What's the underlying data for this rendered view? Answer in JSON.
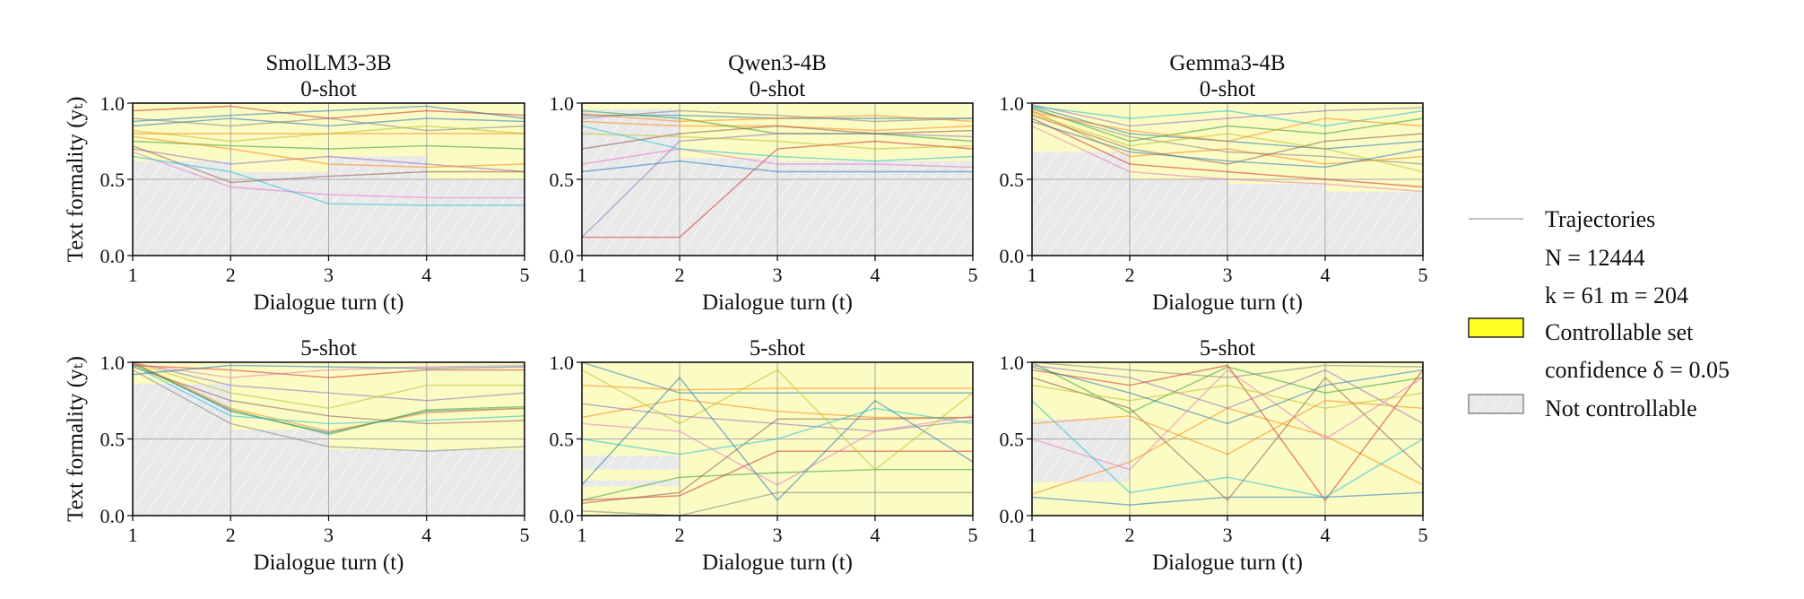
{
  "figure": {
    "legend": {
      "items": [
        {
          "kind": "line",
          "label": "Trajectories",
          "color": "#999999"
        },
        {
          "kind": "text",
          "label": "N = 12444"
        },
        {
          "kind": "text",
          "label": "k = 61 m = 204"
        },
        {
          "kind": "patch",
          "label": "Controllable set",
          "color": "#ffff22"
        },
        {
          "kind": "text",
          "label": "confidence δ = 0.05"
        },
        {
          "kind": "hatch",
          "label": "Not controllable",
          "color": "#e8e8e8"
        }
      ],
      "placement": "right"
    },
    "colors": {
      "controllable_fill": "#fbfbc4",
      "not_controllable_fill": "#e9e9e9",
      "series_palette": [
        "#1f77b4",
        "#ff7f0e",
        "#2ca02c",
        "#d62728",
        "#9467bd",
        "#8c564b",
        "#e377c2",
        "#7f7f7f",
        "#bcbd22",
        "#17becf"
      ]
    }
  },
  "chart_data": [
    {
      "type": "line",
      "title": "SmolLM3-3B",
      "subtitle": "0-shot",
      "xlabel": "Dialogue turn (t)",
      "ylabel": "Text formality (yₜ)",
      "xlim": [
        1,
        5
      ],
      "ylim": [
        0,
        1
      ],
      "xticks": [
        "1",
        "2",
        "3",
        "4",
        "5"
      ],
      "yticks": [
        "0.0",
        "0.5",
        "1.0"
      ],
      "grid": true,
      "controllable_set": [
        [
          [
            0.62,
            1.0
          ]
        ],
        [
          [
            0.55,
            1.0
          ]
        ],
        [
          [
            0.65,
            1.0
          ]
        ],
        [
          [
            0.5,
            1.0
          ]
        ]
      ],
      "trajectories": [
        [
          0.85,
          0.9,
          0.85,
          0.9,
          0.88
        ],
        [
          0.8,
          0.8,
          0.8,
          0.8,
          0.8
        ],
        [
          0.75,
          0.72,
          0.7,
          0.72,
          0.7
        ],
        [
          0.95,
          0.98,
          0.9,
          0.95,
          0.92
        ],
        [
          0.7,
          0.6,
          0.65,
          0.6,
          0.55
        ],
        [
          0.72,
          0.48,
          0.52,
          0.55,
          0.55
        ],
        [
          0.68,
          0.45,
          0.4,
          0.38,
          0.38
        ],
        [
          0.9,
          0.85,
          0.9,
          0.82,
          0.85
        ],
        [
          0.82,
          0.75,
          0.8,
          0.85,
          0.8
        ],
        [
          0.65,
          0.55,
          0.34,
          0.33,
          0.33
        ],
        [
          0.88,
          0.92,
          0.95,
          0.98,
          0.9
        ],
        [
          0.78,
          0.7,
          0.6,
          0.58,
          0.6
        ]
      ]
    },
    {
      "type": "line",
      "title": "Qwen3-4B",
      "subtitle": "0-shot",
      "xlabel": "Dialogue turn (t)",
      "ylabel": "",
      "xlim": [
        1,
        5
      ],
      "ylim": [
        0,
        1
      ],
      "xticks": [
        "1",
        "2",
        "3",
        "4",
        "5"
      ],
      "yticks": [
        "0.0",
        "0.5",
        "1.0"
      ],
      "grid": true,
      "controllable_set": [
        [
          [
            0.96,
            1.0
          ]
        ],
        [
          [
            0.64,
            1.0
          ]
        ],
        [
          [
            0.62,
            1.0
          ]
        ],
        [
          [
            0.62,
            1.0
          ]
        ]
      ],
      "trajectories": [
        [
          0.92,
          0.92,
          0.9,
          0.9,
          0.9
        ],
        [
          0.88,
          0.85,
          0.85,
          0.82,
          0.85
        ],
        [
          0.95,
          0.9,
          0.8,
          0.8,
          0.75
        ],
        [
          0.12,
          0.12,
          0.7,
          0.75,
          0.7
        ],
        [
          0.12,
          0.75,
          0.8,
          0.8,
          0.78
        ],
        [
          0.7,
          0.8,
          0.85,
          0.8,
          0.82
        ],
        [
          0.6,
          0.7,
          0.6,
          0.6,
          0.58
        ],
        [
          0.9,
          0.95,
          0.92,
          0.88,
          0.9
        ],
        [
          0.8,
          0.78,
          0.75,
          0.7,
          0.72
        ],
        [
          0.85,
          0.7,
          0.65,
          0.62,
          0.65
        ],
        [
          0.55,
          0.62,
          0.55,
          0.55,
          0.55
        ],
        [
          0.93,
          0.88,
          0.9,
          0.92,
          0.88
        ]
      ]
    },
    {
      "type": "line",
      "title": "Gemma3-4B",
      "subtitle": "0-shot",
      "xlabel": "Dialogue turn (t)",
      "ylabel": "",
      "xlim": [
        1,
        5
      ],
      "ylim": [
        0,
        1
      ],
      "xticks": [
        "1",
        "2",
        "3",
        "4",
        "5"
      ],
      "yticks": [
        "0.0",
        "0.5",
        "1.0"
      ],
      "grid": true,
      "controllable_set": [
        [
          [
            0.68,
            1.0
          ]
        ],
        [
          [
            0.5,
            1.0
          ]
        ],
        [
          [
            0.47,
            1.0
          ]
        ],
        [
          [
            0.42,
            1.0
          ]
        ]
      ],
      "trajectories": [
        [
          0.98,
          0.8,
          0.75,
          0.7,
          0.75
        ],
        [
          0.95,
          0.65,
          0.7,
          0.6,
          0.65
        ],
        [
          0.97,
          0.75,
          0.85,
          0.8,
          0.9
        ],
        [
          0.9,
          0.6,
          0.55,
          0.5,
          0.45
        ],
        [
          0.99,
          0.85,
          0.9,
          0.95,
          0.97
        ],
        [
          0.92,
          0.7,
          0.6,
          0.75,
          0.8
        ],
        [
          0.85,
          0.55,
          0.5,
          0.47,
          0.42
        ],
        [
          0.96,
          0.78,
          0.68,
          0.65,
          0.6
        ],
        [
          0.93,
          0.72,
          0.8,
          0.7,
          0.55
        ],
        [
          0.98,
          0.9,
          0.95,
          0.85,
          0.95
        ],
        [
          0.88,
          0.68,
          0.62,
          0.58,
          0.7
        ],
        [
          0.94,
          0.82,
          0.75,
          0.9,
          0.85
        ]
      ]
    },
    {
      "type": "line",
      "title": "",
      "subtitle": "5-shot",
      "xlabel": "Dialogue turn (t)",
      "ylabel": "Text formality (yₜ)",
      "xlim": [
        1,
        5
      ],
      "ylim": [
        0,
        1
      ],
      "xticks": [
        "1",
        "2",
        "3",
        "4",
        "5"
      ],
      "yticks": [
        "0.0",
        "0.5",
        "1.0"
      ],
      "grid": true,
      "controllable_set": [
        [
          [
            0.86,
            1.0
          ]
        ],
        [
          [
            0.56,
            1.0
          ]
        ],
        [
          [
            0.43,
            1.0
          ]
        ],
        [
          [
            0.43,
            1.0
          ]
        ]
      ],
      "trajectories": [
        [
          1.0,
          0.68,
          0.54,
          0.68,
          0.7
        ],
        [
          1.0,
          0.7,
          0.55,
          0.67,
          0.7
        ],
        [
          0.99,
          0.69,
          0.53,
          0.69,
          0.71
        ],
        [
          0.98,
          0.95,
          0.9,
          0.95,
          0.95
        ],
        [
          1.0,
          0.85,
          0.8,
          0.75,
          0.8
        ],
        [
          0.97,
          0.75,
          0.65,
          0.6,
          0.62
        ],
        [
          0.99,
          0.9,
          0.95,
          0.97,
          0.98
        ],
        [
          0.95,
          0.6,
          0.45,
          0.42,
          0.45
        ],
        [
          1.0,
          0.8,
          0.7,
          0.85,
          0.85
        ],
        [
          0.98,
          0.65,
          0.6,
          0.62,
          0.65
        ],
        [
          0.92,
          0.98,
          0.97,
          0.96,
          0.97
        ]
      ]
    },
    {
      "type": "line",
      "title": "",
      "subtitle": "5-shot",
      "xlabel": "Dialogue turn (t)",
      "ylabel": "",
      "xlim": [
        1,
        5
      ],
      "ylim": [
        0,
        1
      ],
      "xticks": [
        "1",
        "2",
        "3",
        "4",
        "5"
      ],
      "yticks": [
        "0.0",
        "0.5",
        "1.0"
      ],
      "grid": true,
      "controllable_set": [
        [
          [
            0.0,
            0.19
          ],
          [
            0.23,
            0.3
          ],
          [
            0.39,
            1.0
          ]
        ],
        [
          [
            0.0,
            1.0
          ]
        ],
        [
          [
            0.0,
            1.0
          ]
        ],
        [
          [
            0.0,
            1.0
          ]
        ]
      ],
      "trajectories": [
        [
          1.0,
          0.8,
          0.8,
          0.8,
          0.8
        ],
        [
          0.64,
          0.76,
          0.68,
          0.64,
          0.64
        ],
        [
          0.1,
          0.25,
          0.28,
          0.3,
          0.3
        ],
        [
          0.1,
          0.13,
          0.42,
          0.42,
          0.42
        ],
        [
          0.73,
          0.65,
          0.6,
          0.55,
          0.62
        ],
        [
          0.08,
          0.15,
          0.63,
          0.63,
          0.64
        ],
        [
          0.6,
          0.55,
          0.2,
          0.55,
          0.65
        ],
        [
          0.03,
          0.0,
          0.15,
          0.15,
          0.15
        ],
        [
          0.95,
          0.6,
          0.95,
          0.3,
          0.8
        ],
        [
          0.5,
          0.4,
          0.5,
          0.7,
          0.6
        ],
        [
          0.2,
          0.9,
          0.1,
          0.75,
          0.35
        ],
        [
          0.85,
          0.82,
          0.83,
          0.83,
          0.83
        ]
      ]
    },
    {
      "type": "line",
      "title": "",
      "subtitle": "5-shot",
      "xlabel": "Dialogue turn (t)",
      "ylabel": "",
      "xlim": [
        1,
        5
      ],
      "ylim": [
        0,
        1
      ],
      "xticks": [
        "1",
        "2",
        "3",
        "4",
        "5"
      ],
      "yticks": [
        "0.0",
        "0.5",
        "1.0"
      ],
      "grid": true,
      "controllable_set": [
        [
          [
            0.0,
            0.22
          ],
          [
            0.63,
            1.0
          ]
        ],
        [
          [
            0.0,
            1.0
          ]
        ],
        [
          [
            0.0,
            1.0
          ]
        ],
        [
          [
            0.0,
            1.0
          ]
        ]
      ],
      "trajectories": [
        [
          0.12,
          0.07,
          0.12,
          0.12,
          0.15
        ],
        [
          0.14,
          0.35,
          0.7,
          0.52,
          0.2
        ],
        [
          1.0,
          0.67,
          0.97,
          0.8,
          0.9
        ],
        [
          0.95,
          0.85,
          0.98,
          0.1,
          0.95
        ],
        [
          0.98,
          0.9,
          0.7,
          0.95,
          0.6
        ],
        [
          0.9,
          0.7,
          0.1,
          0.9,
          0.3
        ],
        [
          0.5,
          0.3,
          0.95,
          0.5,
          0.9
        ],
        [
          1.0,
          0.95,
          0.9,
          0.98,
          0.97
        ],
        [
          0.85,
          0.75,
          0.85,
          0.7,
          0.8
        ],
        [
          0.75,
          0.15,
          0.25,
          0.12,
          0.5
        ],
        [
          0.97,
          0.8,
          0.6,
          0.85,
          0.95
        ],
        [
          0.6,
          0.65,
          0.4,
          0.75,
          0.7
        ]
      ]
    }
  ]
}
